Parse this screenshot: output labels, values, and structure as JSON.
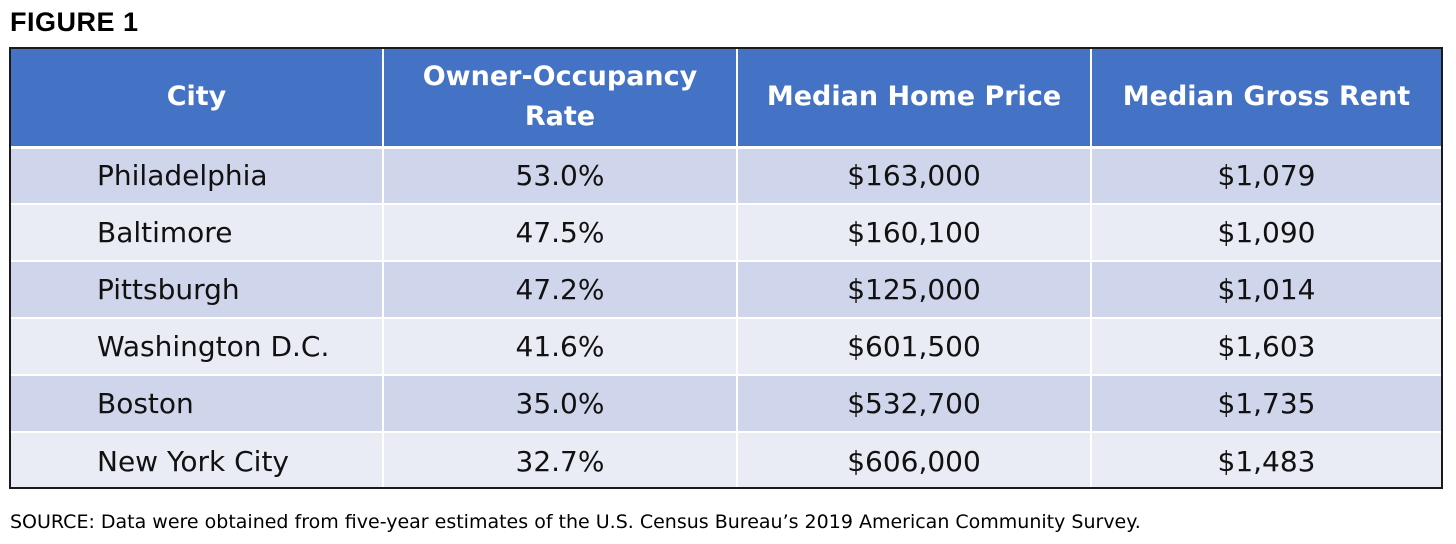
{
  "figure_label": "FIGURE 1",
  "source_note": "SOURCE: Data were obtained from five-year estimates of the U.S. Census Bureau’s 2019 American Community Survey.",
  "colors": {
    "header_bg": "#4472c4",
    "header_text": "#ffffff",
    "row_odd_bg": "#cfd5ea",
    "row_even_bg": "#e9ebf5"
  },
  "chart_data": {
    "type": "table",
    "columns": [
      "City",
      "Owner-Occupancy Rate",
      "Median Home Price",
      "Median Gross Rent"
    ],
    "rows": [
      [
        "Philadelphia",
        "53.0%",
        "$163,000",
        "$1,079"
      ],
      [
        "Baltimore",
        "47.5%",
        "$160,100",
        "$1,090"
      ],
      [
        "Pittsburgh",
        "47.2%",
        "$125,000",
        "$1,014"
      ],
      [
        "Washington D.C.",
        "41.6%",
        "$601,500",
        "$1,603"
      ],
      [
        "Boston",
        "35.0%",
        "$532,700",
        "$1,735"
      ],
      [
        "New York City",
        "32.7%",
        "$606,000",
        "$1,483"
      ]
    ]
  }
}
